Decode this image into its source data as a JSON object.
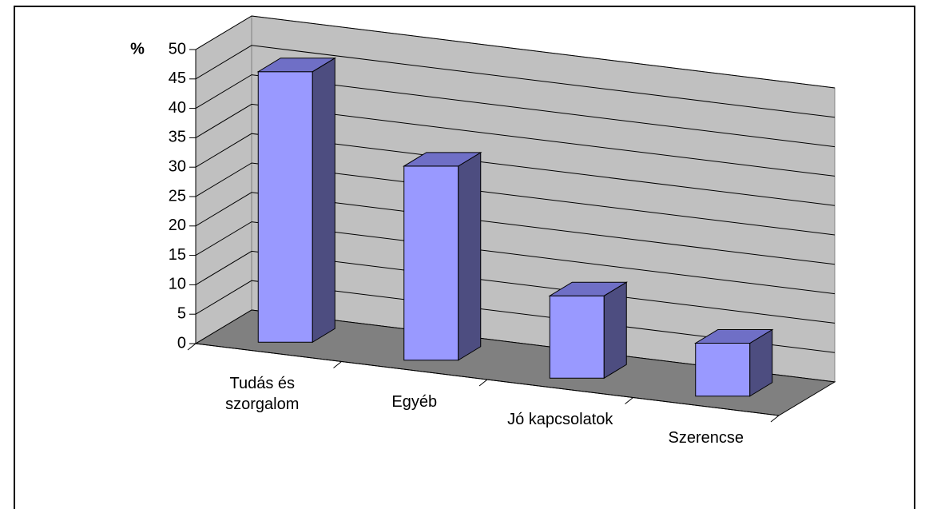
{
  "chart_data": {
    "type": "bar",
    "y_axis_label": "%",
    "categories": [
      "Tudás és szorgalom",
      "Egyéb",
      "Jó kapcsolatok",
      "Szerencse"
    ],
    "values": [
      46,
      33,
      14,
      9
    ],
    "color": "#9999ff",
    "ylim": [
      0,
      50
    ],
    "yticks": [
      0,
      5,
      10,
      15,
      20,
      25,
      30,
      35,
      40,
      45,
      50
    ],
    "grid": true
  }
}
